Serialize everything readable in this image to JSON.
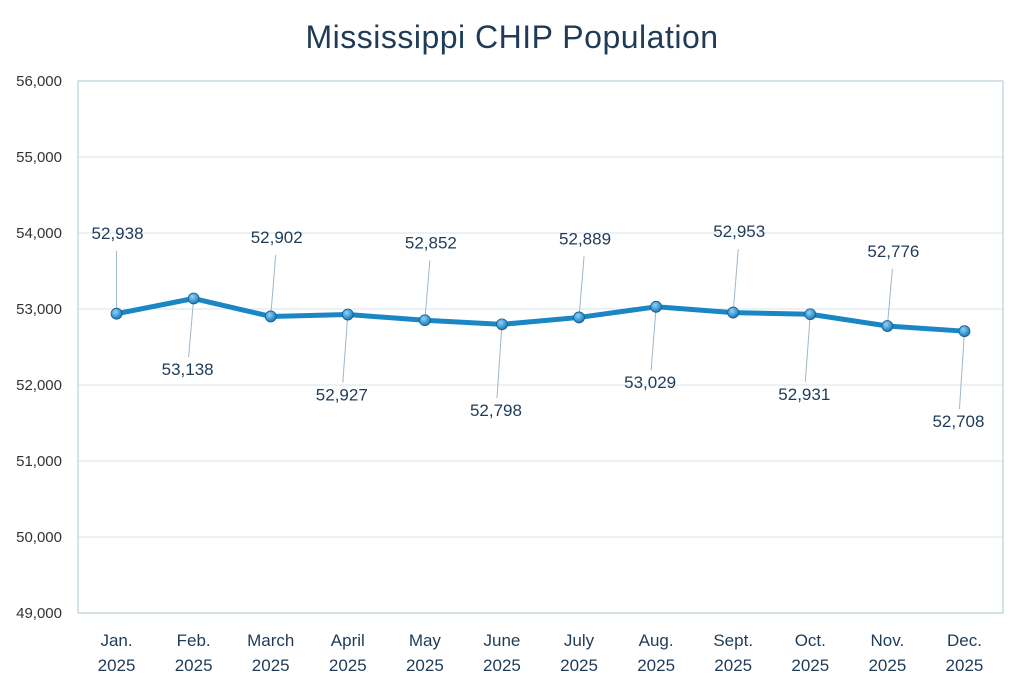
{
  "chart_data": {
    "type": "line",
    "title": "Mississippi CHIP Population",
    "categories": [
      [
        "Jan.",
        "2025"
      ],
      [
        "Feb.",
        "2025"
      ],
      [
        "March",
        "2025"
      ],
      [
        "April",
        "2025"
      ],
      [
        "May",
        "2025"
      ],
      [
        "June",
        "2025"
      ],
      [
        "July",
        "2025"
      ],
      [
        "Aug.",
        "2025"
      ],
      [
        "Sept.",
        "2025"
      ],
      [
        "Oct.",
        "2025"
      ],
      [
        "Nov.",
        "2025"
      ],
      [
        "Dec.",
        "2025"
      ]
    ],
    "values": [
      52938,
      53138,
      52902,
      52927,
      52852,
      52798,
      52889,
      53029,
      52953,
      52931,
      52776,
      52708
    ],
    "value_labels": [
      "52,938",
      "53,138",
      "52,902",
      "52,927",
      "52,852",
      "52,798",
      "52,889",
      "53,029",
      "52,953",
      "52,931",
      "52,776",
      "52,708"
    ],
    "label_position": [
      "above",
      "below",
      "above",
      "below",
      "above",
      "below",
      "above",
      "below",
      "above",
      "below",
      "above",
      "below"
    ],
    "ylim": [
      49000,
      56000
    ],
    "yticks": [
      49000,
      50000,
      51000,
      52000,
      53000,
      54000,
      55000,
      56000
    ],
    "ytick_labels": [
      "49,000",
      "50,000",
      "51,000",
      "52,000",
      "53,000",
      "54,000",
      "55,000",
      "56,000"
    ],
    "grid": true,
    "line_color": "#1a86c4",
    "marker_color": "#2a96d6"
  }
}
